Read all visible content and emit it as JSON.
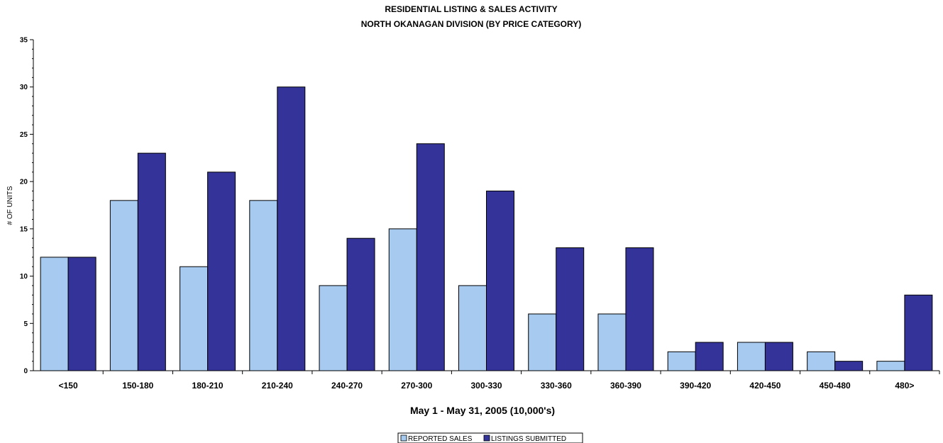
{
  "chart_data": {
    "type": "bar",
    "title": "RESIDENTIAL LISTING & SALES ACTIVITY",
    "subtitle": "NORTH OKANAGAN DIVISION (BY PRICE CATEGORY)",
    "xlabel": "May 1 - May 31, 2005 (10,000's)",
    "ylabel": "# OF UNITS",
    "ylim": [
      0,
      35
    ],
    "yticks": [
      0,
      5,
      10,
      15,
      20,
      25,
      30,
      35
    ],
    "ymajor_step": 5,
    "yminor_step": 1,
    "grid": false,
    "legend_position": "bottom-center",
    "categories": [
      "<150",
      "150-180",
      "180-210",
      "210-240",
      "240-270",
      "270-300",
      "300-330",
      "330-360",
      "360-390",
      "390-420",
      "420-450",
      "450-480",
      "480>"
    ],
    "series": [
      {
        "name": "REPORTED SALES",
        "color": "#A6CAF0",
        "values": [
          12,
          18,
          11,
          18,
          9,
          15,
          9,
          6,
          6,
          2,
          3,
          2,
          1
        ]
      },
      {
        "name": "LISTINGS SUBMITTED",
        "color": "#333399",
        "values": [
          12,
          23,
          21,
          30,
          14,
          24,
          19,
          13,
          13,
          3,
          3,
          1,
          8
        ]
      }
    ]
  }
}
